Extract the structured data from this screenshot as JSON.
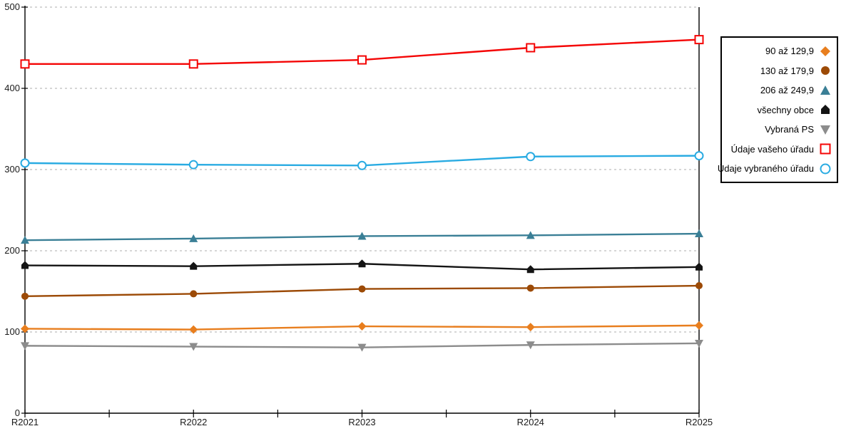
{
  "chart_data": {
    "type": "line",
    "title": "",
    "xlabel": "",
    "ylabel": "",
    "categories": [
      "R2021",
      "R2022",
      "R2023",
      "R2024",
      "R2025"
    ],
    "series": [
      {
        "id": "range-90-130",
        "name": "90 až 129,9",
        "marker": "diamond",
        "color": "#E87E1E",
        "values": [
          104,
          103,
          107,
          106,
          108
        ]
      },
      {
        "id": "range-130-180",
        "name": "130 až 179,9",
        "marker": "circle",
        "color": "#9C4A06",
        "values": [
          144,
          147,
          153,
          154,
          157
        ]
      },
      {
        "id": "range-206-250",
        "name": "206 až 249,9",
        "marker": "triangle-up",
        "color": "#3A7F96",
        "values": [
          213,
          215,
          218,
          219,
          221
        ]
      },
      {
        "id": "all-municipalities",
        "name": "všechny obce",
        "marker": "house-up",
        "color": "#141414",
        "values": [
          182,
          181,
          184,
          177,
          180
        ]
      },
      {
        "id": "selected-ps",
        "name": "Vybraná PS",
        "marker": "triangle-down",
        "color": "#8C8C8C",
        "values": [
          83,
          82,
          81,
          84,
          86
        ]
      },
      {
        "id": "your-office-data",
        "name": "Údaje vašeho úřadu",
        "marker": "square-open",
        "color": "#F40505",
        "values": [
          430,
          430,
          435,
          450,
          460
        ]
      },
      {
        "id": "selected-office-data",
        "name": "Údaje vybraného úřadu",
        "marker": "circle-open",
        "color": "#29ABE2",
        "values": [
          308,
          306,
          305,
          316,
          317
        ]
      }
    ],
    "ylim": [
      0,
      500
    ],
    "yticks": [
      0,
      100,
      200,
      300,
      400,
      500
    ],
    "grid": "horizontal-dashed",
    "grid_color": "#ADADAD",
    "axis_color": "#000000",
    "legend_position": "right"
  }
}
